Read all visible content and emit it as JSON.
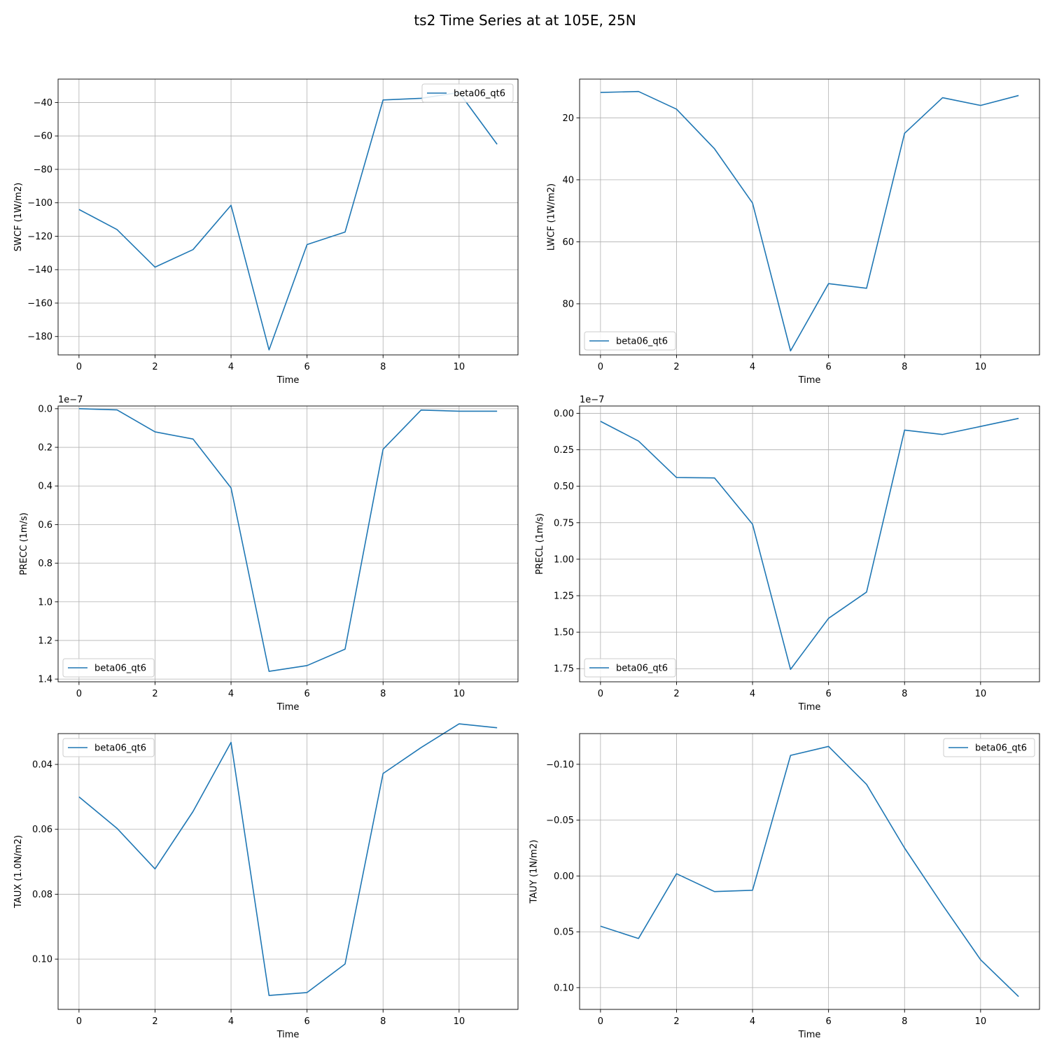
{
  "figure": {
    "title": "ts2 Time Series at at 105E, 25N"
  },
  "chart_data": [
    {
      "type": "line",
      "xlabel": "Time",
      "ylabel": "SWCF (1W/m2)",
      "xlim": [
        -0.55,
        11.55
      ],
      "ylim": [
        -26,
        -191
      ],
      "xticks": [
        0,
        2,
        4,
        6,
        8,
        10
      ],
      "yticks": [
        -180,
        -160,
        -140,
        -120,
        -100,
        -80,
        -60,
        -40
      ],
      "ytick_labels": [
        "−180",
        "−160",
        "−140",
        "−120",
        "−100",
        "−80",
        "−60",
        "−40"
      ],
      "offset_text": "",
      "grid": true,
      "legend_loc": "top-right",
      "series": [
        {
          "name": "beta06_qt6",
          "color": "#1f77b4",
          "x": [
            0,
            1,
            2,
            3,
            4,
            5,
            6,
            7,
            8,
            9,
            10,
            11
          ],
          "y": [
            -104,
            -116,
            -138.5,
            -128,
            -101.5,
            -188,
            -125,
            -117.5,
            -38.5,
            -37.5,
            -34,
            -65
          ]
        }
      ]
    },
    {
      "type": "line",
      "xlabel": "Time",
      "ylabel": "LWCF (1W/m2)",
      "xlim": [
        -0.55,
        11.55
      ],
      "ylim": [
        7.5,
        96.5
      ],
      "xticks": [
        0,
        2,
        4,
        6,
        8,
        10
      ],
      "yticks": [
        20,
        40,
        60,
        80
      ],
      "ytick_labels": [
        "20",
        "40",
        "60",
        "80"
      ],
      "offset_text": "",
      "grid": true,
      "legend_loc": "bottom-left",
      "series": [
        {
          "name": "beta06_qt6",
          "color": "#1f77b4",
          "x": [
            0,
            1,
            2,
            3,
            4,
            5,
            6,
            7,
            8,
            9,
            10,
            11
          ],
          "y": [
            11.8,
            11.5,
            17.2,
            30,
            47.5,
            95.2,
            73.5,
            75,
            25,
            13.5,
            16,
            12.8
          ]
        }
      ]
    },
    {
      "type": "line",
      "xlabel": "Time",
      "ylabel": "PRECC (1m/s)",
      "xlim": [
        -0.55,
        11.55
      ],
      "ylim": [
        -0.014,
        1.414
      ],
      "xticks": [
        0,
        2,
        4,
        6,
        8,
        10
      ],
      "yticks": [
        0.0,
        0.2,
        0.4,
        0.6,
        0.8,
        1.0,
        1.2,
        1.4
      ],
      "ytick_labels": [
        "0.0",
        "0.2",
        "0.4",
        "0.6",
        "0.8",
        "1.0",
        "1.2",
        "1.4"
      ],
      "offset_text": "1e−7",
      "grid": true,
      "legend_loc": "bottom-left",
      "series": [
        {
          "name": "beta06_qt6",
          "color": "#1f77b4",
          "x": [
            0,
            1,
            2,
            3,
            4,
            5,
            6,
            7,
            8,
            9,
            10,
            11
          ],
          "y": [
            0.0,
            0.006,
            0.12,
            0.157,
            0.41,
            1.36,
            1.33,
            1.245,
            0.21,
            0.007,
            0.013,
            0.013
          ]
        }
      ]
    },
    {
      "type": "line",
      "xlabel": "Time",
      "ylabel": "PRECL (1m/s)",
      "xlim": [
        -0.55,
        11.55
      ],
      "ylim": [
        -0.05,
        1.84
      ],
      "xticks": [
        0,
        2,
        4,
        6,
        8,
        10
      ],
      "yticks": [
        0.0,
        0.25,
        0.5,
        0.75,
        1.0,
        1.25,
        1.5,
        1.75
      ],
      "ytick_labels": [
        "0.00",
        "0.25",
        "0.50",
        "0.75",
        "1.00",
        "1.25",
        "1.50",
        "1.75"
      ],
      "offset_text": "1e−7",
      "grid": true,
      "legend_loc": "bottom-left",
      "series": [
        {
          "name": "beta06_qt6",
          "color": "#1f77b4",
          "x": [
            0,
            1,
            2,
            3,
            4,
            5,
            6,
            7,
            8,
            9,
            10,
            11
          ],
          "y": [
            0.055,
            0.19,
            0.44,
            0.443,
            0.76,
            1.755,
            1.405,
            1.225,
            0.115,
            0.145,
            0.09,
            0.035
          ]
        }
      ]
    },
    {
      "type": "line",
      "xlabel": "Time",
      "ylabel": "TAUX (1.0N/m2)",
      "xlim": [
        -0.55,
        11.55
      ],
      "ylim": [
        0.0305,
        0.1155
      ],
      "xticks": [
        0,
        2,
        4,
        6,
        8,
        10
      ],
      "yticks": [
        0.04,
        0.06,
        0.08,
        0.1
      ],
      "ytick_labels": [
        "0.04",
        "0.06",
        "0.08",
        "0.10"
      ],
      "offset_text": "",
      "grid": true,
      "legend_loc": "top-left",
      "series": [
        {
          "name": "beta06_qt6",
          "color": "#1f77b4",
          "x": [
            0,
            1,
            2,
            3,
            4,
            5,
            6,
            7,
            8,
            9,
            10,
            11
          ],
          "y": [
            0.05,
            0.0597,
            0.0722,
            0.0545,
            0.0332,
            0.1112,
            0.1103,
            0.1015,
            0.0428,
            0.0348,
            0.0275,
            0.0287
          ]
        }
      ]
    },
    {
      "type": "line",
      "xlabel": "Time",
      "ylabel": "TAUY (1N/m2)",
      "xlim": [
        -0.55,
        11.55
      ],
      "ylim": [
        -0.1275,
        0.1195
      ],
      "xticks": [
        0,
        2,
        4,
        6,
        8,
        10
      ],
      "yticks": [
        -0.1,
        -0.05,
        0.0,
        0.05,
        0.1
      ],
      "ytick_labels": [
        "−0.10",
        "−0.05",
        "0.00",
        "0.05",
        "0.10"
      ],
      "offset_text": "",
      "grid": true,
      "legend_loc": "top-right",
      "series": [
        {
          "name": "beta06_qt6",
          "color": "#1f77b4",
          "x": [
            0,
            1,
            2,
            3,
            4,
            5,
            6,
            7,
            8,
            9,
            10,
            11
          ],
          "y": [
            0.045,
            0.056,
            -0.002,
            0.014,
            0.0128,
            -0.108,
            -0.116,
            -0.082,
            -0.025,
            0.026,
            0.075,
            0.108
          ]
        }
      ]
    }
  ]
}
